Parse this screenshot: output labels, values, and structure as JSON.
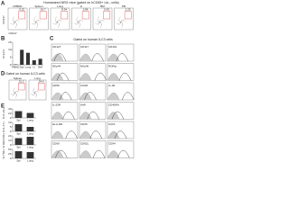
{
  "panels": {
    "a": {
      "label": "A",
      "title": "Humanized NRG mice (gated on hCD45+ Lin– cells)",
      "y_axis": "CD127",
      "x_axis": "CD117",
      "plots": [
        {
          "name": "hPBMC",
          "value": "0.22"
        },
        {
          "name": "Spleen",
          "value": "10.7"
        },
        {
          "name": "Lung",
          "value": "8.34"
        },
        {
          "name": "LI",
          "value": "2.86"
        },
        {
          "name": "BM",
          "value": "5.43"
        },
        {
          "name": "PB",
          "value": "1.25"
        }
      ]
    },
    "b": {
      "label": "B",
      "y_axis": "% ILC3",
      "chart_data": {
        "type": "bar",
        "categories": [
          "PBMC",
          "Spl",
          "Lung",
          "LI",
          "BM"
        ],
        "values": [
          0.3,
          10,
          8,
          3,
          4
        ],
        "color": "#333333",
        "ylim": [
          0,
          15
        ],
        "yticks": [
          0,
          5,
          10,
          15
        ]
      }
    },
    "c": {
      "label": "C",
      "title": "Gated on human ILC3 cells",
      "markers": [
        "CD127",
        "CD117",
        "CD161",
        "NKp44",
        "NKp46",
        "RORγt",
        "CD56",
        "CCR6",
        "IL-1R",
        "IL-23R",
        "AhR",
        "CD45RA",
        "HLA-DR",
        "CD25",
        "ICOS",
        "CD69",
        "CD62L",
        "CD94"
      ]
    },
    "d": {
      "label": "D",
      "title": "Gated on human ILC3 cells",
      "plots": [
        {
          "name": "Spleen",
          "value": "31.2"
        },
        {
          "name": "Lung",
          "value": "24.6"
        }
      ]
    },
    "e": {
      "label": "E",
      "charts": [
        {
          "y_axis": "% IL-22+",
          "chart_data": {
            "type": "bar",
            "categories": [
              "Spl",
              "Lung"
            ],
            "values": [
              30,
              22
            ],
            "color": "#333333",
            "ylim": [
              0,
              40
            ],
            "yticks": [
              0,
              20,
              40
            ]
          }
        },
        {
          "y_axis": "% IL-17+",
          "chart_data": {
            "type": "bar",
            "categories": [
              "Spl",
              "Lung"
            ],
            "values": [
              8,
              5
            ],
            "color": "#333333",
            "ylim": [
              0,
              10
            ],
            "yticks": [
              0,
              5,
              10
            ]
          }
        },
        {
          "y_axis": "% GM-CSF+",
          "chart_data": {
            "type": "bar",
            "categories": [
              "Spl",
              "Lung"
            ],
            "values": [
              15,
              18
            ],
            "color": "#333333",
            "ylim": [
              0,
              20
            ],
            "yticks": [
              0,
              10,
              20
            ]
          }
        },
        {
          "y_axis": "% TNF+",
          "chart_data": {
            "type": "bar",
            "categories": [
              "Spl",
              "Lung"
            ],
            "values": [
              40,
              35
            ],
            "color": "#333333",
            "ylim": [
              0,
              50
            ],
            "yticks": [
              0,
              25,
              50
            ]
          }
        }
      ]
    }
  }
}
